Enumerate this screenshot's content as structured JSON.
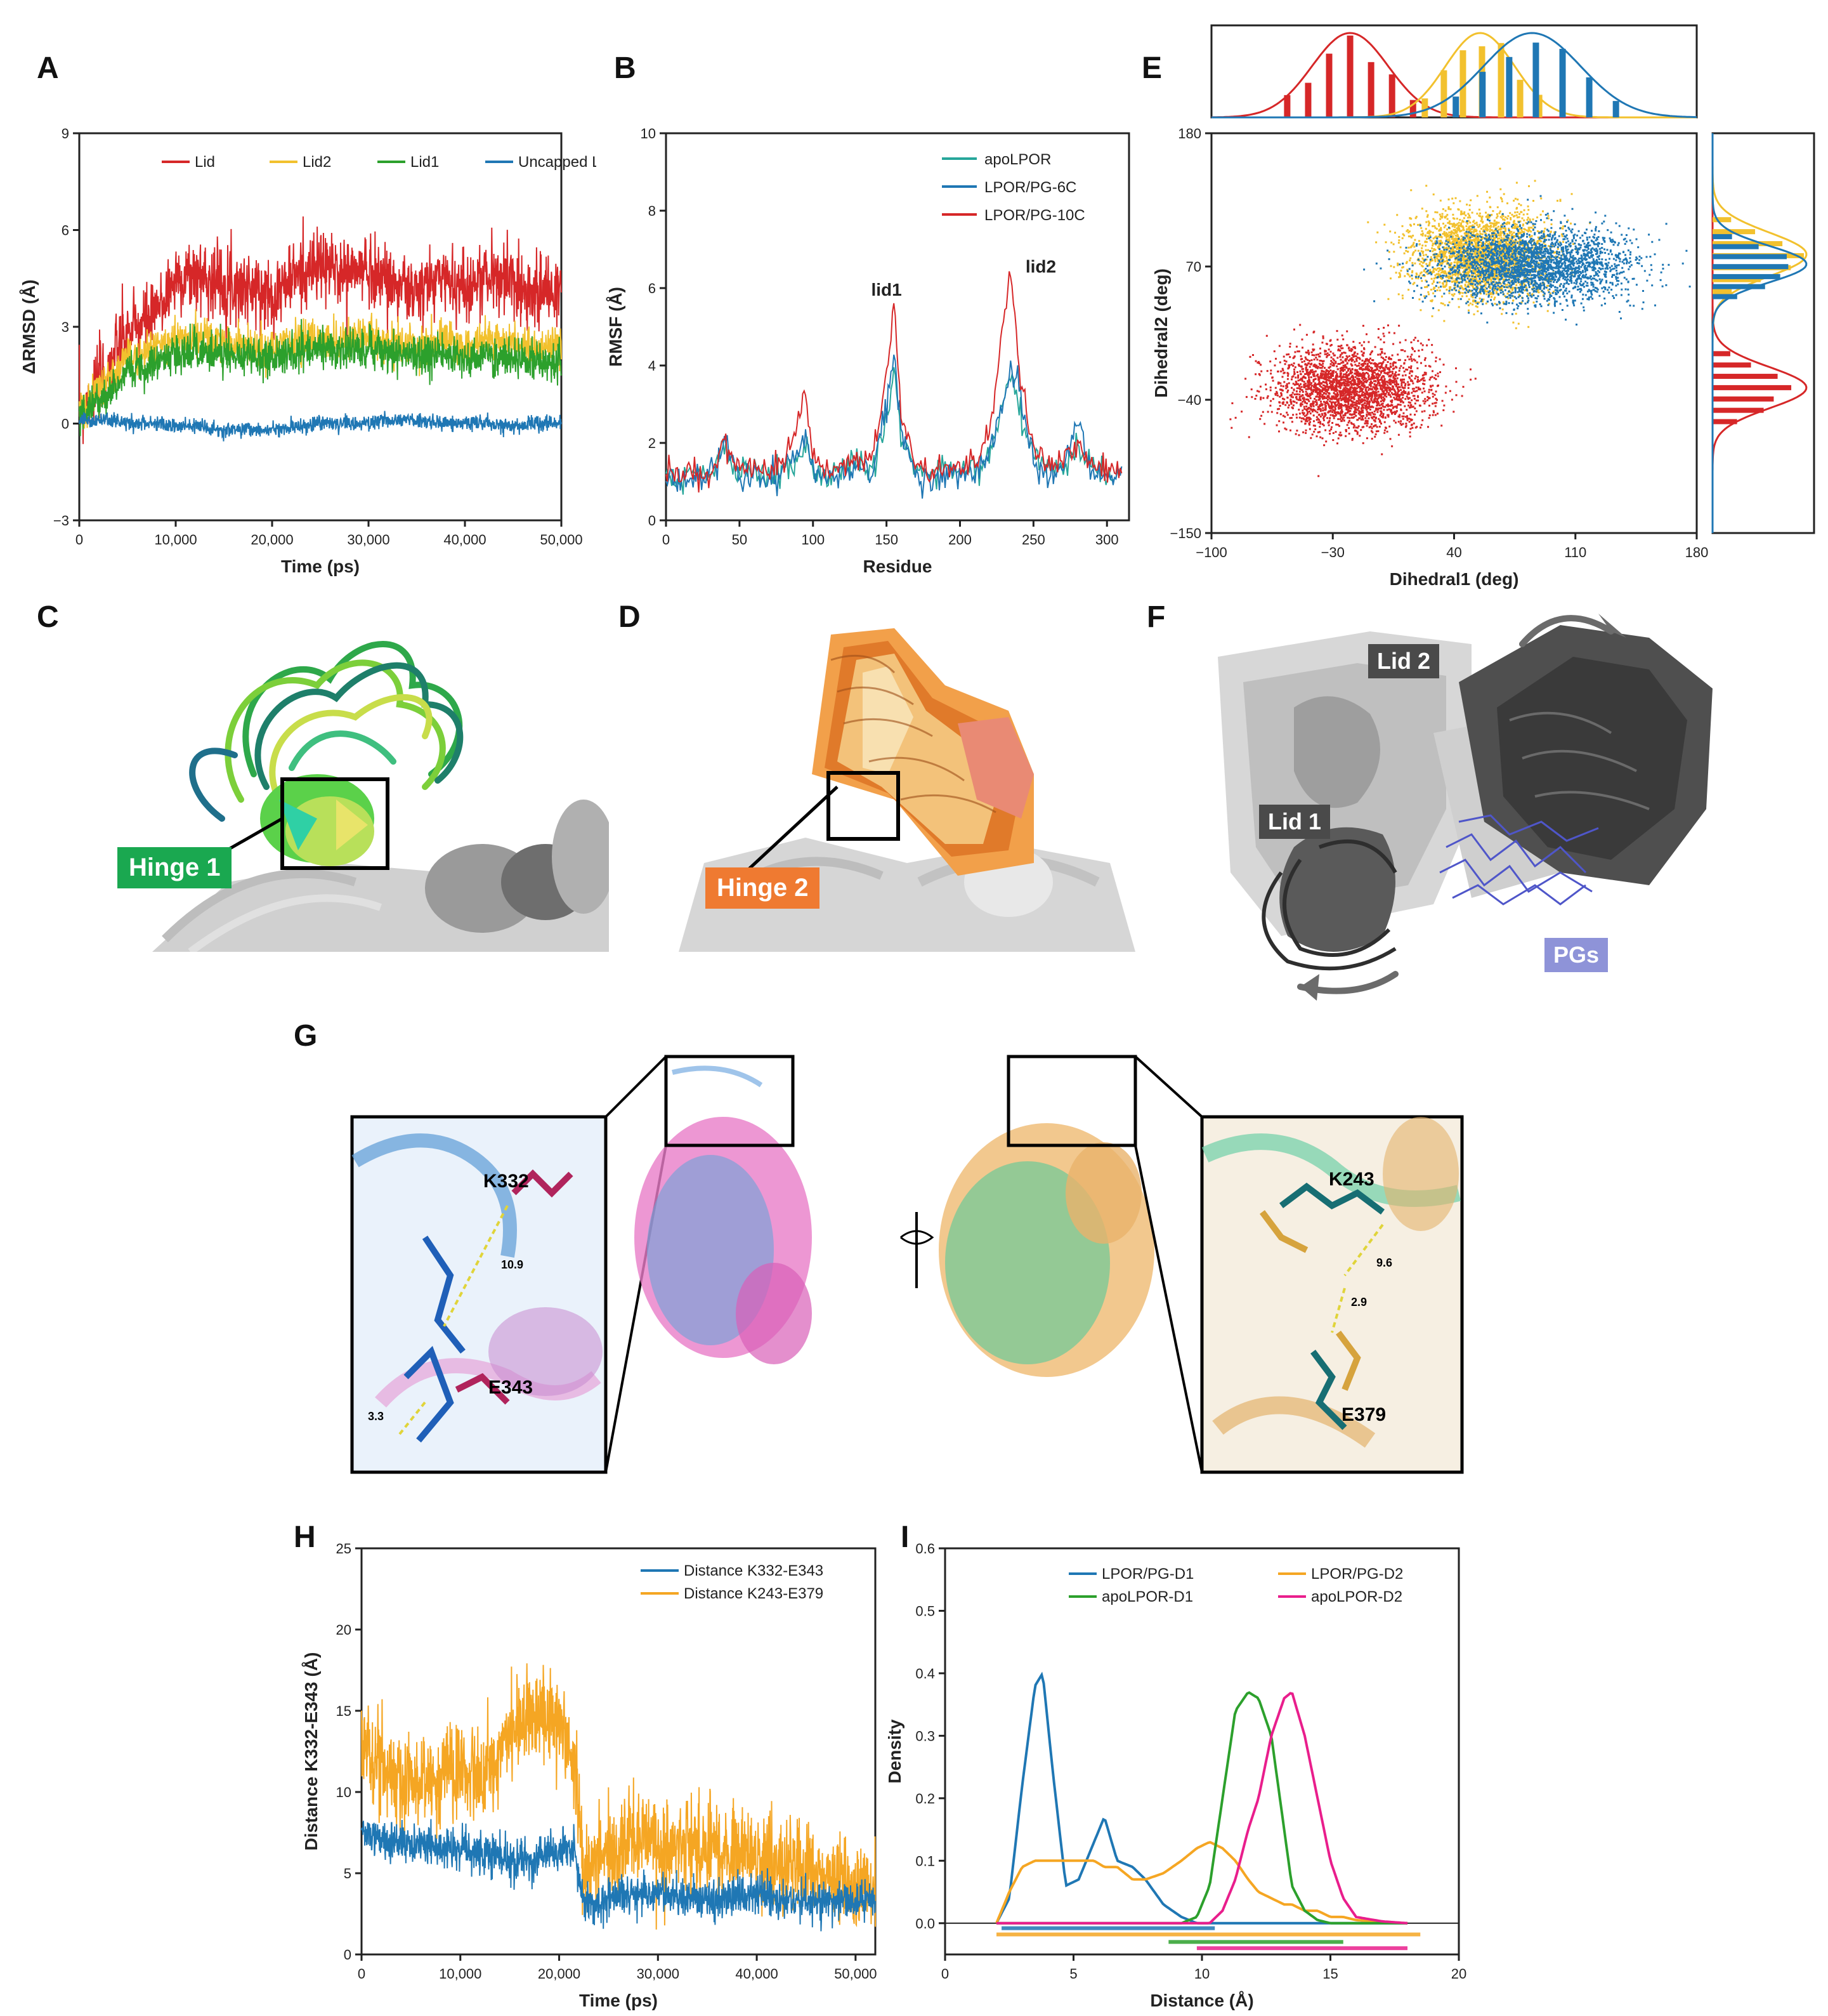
{
  "panels": {
    "A": "A",
    "B": "B",
    "C": "C",
    "D": "D",
    "E": "E",
    "F": "F",
    "G": "G",
    "H": "H",
    "I": "I"
  },
  "chart_data": [
    {
      "id": "A",
      "type": "line",
      "xlabel": "Time (ps)",
      "ylabel": "ΔRMSD (Å)",
      "xlim": [
        0,
        50000
      ],
      "ylim": [
        -3,
        9
      ],
      "xticks": [
        "0",
        "10,000",
        "20,000",
        "30,000",
        "40,000",
        "50,000"
      ],
      "yticks": [
        "−3",
        "0",
        "3",
        "6",
        "9"
      ],
      "legend_position": "top",
      "x": [
        0,
        2500,
        5000,
        7500,
        10000,
        12500,
        15000,
        17500,
        20000,
        22500,
        25000,
        27500,
        30000,
        32500,
        35000,
        37500,
        40000,
        42500,
        45000,
        47500,
        50000
      ],
      "series": [
        {
          "name": "Lid",
          "color": "#d62728",
          "values": [
            0.3,
            1.5,
            2.8,
            3.2,
            4.5,
            4.6,
            4.4,
            4.2,
            4.0,
            4.6,
            4.9,
            4.7,
            4.8,
            4.4,
            4.0,
            4.6,
            4.2,
            4.6,
            4.4,
            4.0,
            4.2
          ]
        },
        {
          "name": "Lid2",
          "color": "#f2c12e",
          "values": [
            0.3,
            1.2,
            2.0,
            2.3,
            2.6,
            2.7,
            2.5,
            2.4,
            2.2,
            2.6,
            2.6,
            2.6,
            2.7,
            2.5,
            2.4,
            2.6,
            2.4,
            2.6,
            2.5,
            2.3,
            2.4
          ]
        },
        {
          "name": "Lid1",
          "color": "#2ca02c",
          "values": [
            0.2,
            0.8,
            1.6,
            1.9,
            2.2,
            2.3,
            2.2,
            2.1,
            2.0,
            2.2,
            2.4,
            2.3,
            2.3,
            2.2,
            2.1,
            2.2,
            2.0,
            2.1,
            2.0,
            1.8,
            2.0
          ]
        },
        {
          "name": "Uncapped LFD",
          "color": "#1f77b4",
          "values": [
            0.1,
            0.1,
            0.0,
            0.0,
            -0.1,
            -0.1,
            -0.2,
            -0.2,
            -0.2,
            -0.1,
            0.0,
            0.0,
            0.0,
            0.1,
            0.1,
            0.0,
            0.0,
            0.0,
            -0.1,
            0.0,
            0.0
          ]
        }
      ]
    },
    {
      "id": "B",
      "type": "line",
      "xlabel": "Residue",
      "ylabel": "RMSF (Å)",
      "xlim": [
        0,
        315
      ],
      "ylim": [
        0,
        10
      ],
      "xticks": [
        "0",
        "50",
        "100",
        "150",
        "200",
        "250",
        "300"
      ],
      "yticks": [
        "0",
        "2",
        "4",
        "6",
        "8",
        "10"
      ],
      "legend_position": "top-right",
      "annotations": [
        "lid1",
        "lid2"
      ],
      "x": [
        0,
        10,
        20,
        30,
        40,
        50,
        60,
        70,
        80,
        90,
        95,
        100,
        110,
        120,
        130,
        140,
        150,
        155,
        160,
        170,
        180,
        190,
        200,
        210,
        220,
        230,
        235,
        240,
        250,
        260,
        270,
        280,
        290,
        300,
        310
      ],
      "series": [
        {
          "name": "apoLPOR",
          "color": "#26a69a",
          "values": [
            1.2,
            1.0,
            1.3,
            1.1,
            1.9,
            1.2,
            1.3,
            1.1,
            1.4,
            1.7,
            2.0,
            1.4,
            1.2,
            1.3,
            1.5,
            1.3,
            2.6,
            3.8,
            2.2,
            1.3,
            1.2,
            1.3,
            1.2,
            1.3,
            1.8,
            3.0,
            3.8,
            2.8,
            1.6,
            1.3,
            1.4,
            2.0,
            1.3,
            1.2,
            1.3
          ]
        },
        {
          "name": "LPOR/PG-6C",
          "color": "#1f77b4",
          "values": [
            1.1,
            1.0,
            1.2,
            1.1,
            2.2,
            1.1,
            1.2,
            1.0,
            1.3,
            1.8,
            2.2,
            1.3,
            1.1,
            1.2,
            1.4,
            1.2,
            2.9,
            4.3,
            2.4,
            1.2,
            1.1,
            1.2,
            1.1,
            1.2,
            1.7,
            3.1,
            4.0,
            3.4,
            1.5,
            1.2,
            1.3,
            2.6,
            1.2,
            1.1,
            1.2
          ]
        },
        {
          "name": "LPOR/PG-10C",
          "color": "#d62728",
          "values": [
            1.3,
            1.1,
            1.4,
            1.2,
            2.0,
            1.3,
            1.4,
            1.2,
            1.6,
            2.4,
            3.4,
            1.6,
            1.3,
            1.4,
            1.6,
            1.6,
            3.6,
            5.6,
            2.8,
            1.4,
            1.3,
            1.4,
            1.3,
            1.5,
            2.3,
            5.2,
            6.6,
            4.0,
            1.8,
            1.4,
            1.5,
            2.0,
            1.4,
            1.3,
            1.4
          ]
        }
      ]
    },
    {
      "id": "E",
      "type": "scatter",
      "xlabel": "Dihedral1 (deg)",
      "ylabel": "Dihedral2 (deg)",
      "xlim": [
        -100,
        180
      ],
      "ylim": [
        -150,
        180
      ],
      "xticks": [
        "−100",
        "−30",
        "40",
        "110",
        "180"
      ],
      "yticks": [
        "−150",
        "−40",
        "70",
        "180"
      ],
      "marginals": "top and right histograms with fitted normal curves",
      "clusters": [
        {
          "color": "#d62728",
          "center_x": -20,
          "center_y": -30,
          "spread_x": 22,
          "spread_y": 17
        },
        {
          "color": "#f2c12e",
          "center_x": 55,
          "center_y": 80,
          "spread_x": 20,
          "spread_y": 18
        },
        {
          "color": "#1f77b4",
          "center_x": 85,
          "center_y": 72,
          "spread_x": 28,
          "spread_y": 15
        }
      ]
    },
    {
      "id": "H",
      "type": "line",
      "xlabel": "Time (ps)",
      "ylabel": "Distance K332-E343 (Å)",
      "xlim": [
        0,
        52000
      ],
      "ylim": [
        0,
        25
      ],
      "xticks": [
        "0",
        "10,000",
        "20,000",
        "30,000",
        "40,000",
        "50,000"
      ],
      "yticks": [
        "0",
        "5",
        "10",
        "15",
        "20",
        "25"
      ],
      "legend_position": "top-right",
      "x": [
        0,
        2500,
        5000,
        7500,
        10000,
        12500,
        15000,
        17500,
        20000,
        21500,
        22500,
        25000,
        27500,
        30000,
        32500,
        35000,
        37500,
        40000,
        42500,
        45000,
        47500,
        50000,
        52000
      ],
      "series": [
        {
          "name": "Distance K332-E343",
          "color": "#1f77b4",
          "values": [
            7.5,
            7.0,
            6.8,
            6.6,
            6.5,
            6.2,
            5.8,
            6.0,
            6.4,
            6.5,
            3.0,
            3.3,
            3.8,
            3.6,
            3.5,
            3.4,
            3.5,
            3.6,
            3.4,
            3.3,
            3.2,
            3.3,
            3.5
          ]
        },
        {
          "name": "Distance K243-E379",
          "color": "#f5a623",
          "values": [
            13.5,
            11.0,
            10.5,
            10.8,
            11.2,
            11.0,
            13.5,
            15.0,
            14.0,
            12.0,
            5.0,
            6.5,
            7.5,
            6.8,
            6.5,
            6.2,
            6.6,
            6.0,
            5.5,
            5.2,
            4.8,
            4.5,
            4.0
          ]
        }
      ]
    },
    {
      "id": "I",
      "type": "line",
      "xlabel": "Distance (Å)",
      "ylabel": "Density",
      "xlim": [
        0,
        20
      ],
      "ylim": [
        -0.05,
        0.6
      ],
      "xticks": [
        "0",
        "5",
        "10",
        "15",
        "20"
      ],
      "yticks": [
        "0.0",
        "0.1",
        "0.2",
        "0.3",
        "0.4",
        "0.5",
        "0.6"
      ],
      "legend_position": "top",
      "x": [
        2,
        2.5,
        3,
        3.5,
        3.8,
        4.2,
        4.7,
        5.2,
        5.8,
        6.2,
        6.7,
        7.3,
        7.8,
        8.5,
        9.2,
        9.8,
        10.3,
        10.8,
        11.3,
        11.8,
        12.2,
        12.7,
        13.2,
        13.5,
        14,
        14.5,
        15,
        15.5,
        16,
        17,
        18
      ],
      "series": [
        {
          "name": "LPOR/PG-D1",
          "color": "#1f77b4",
          "values": [
            0.0,
            0.04,
            0.22,
            0.38,
            0.4,
            0.24,
            0.06,
            0.07,
            0.13,
            0.17,
            0.1,
            0.09,
            0.07,
            0.03,
            0.01,
            0.0,
            0,
            0,
            0,
            0,
            0,
            0,
            0,
            0,
            0,
            0,
            0,
            0,
            0,
            0,
            0
          ]
        },
        {
          "name": "LPOR/PG-D2",
          "color": "#f5a623",
          "values": [
            0.0,
            0.05,
            0.09,
            0.1,
            0.1,
            0.1,
            0.1,
            0.1,
            0.1,
            0.09,
            0.09,
            0.07,
            0.07,
            0.08,
            0.1,
            0.12,
            0.13,
            0.12,
            0.1,
            0.07,
            0.05,
            0.04,
            0.03,
            0.03,
            0.02,
            0.02,
            0.01,
            0.01,
            0.005,
            0.002,
            0
          ]
        },
        {
          "name": "apoLPOR-D1",
          "color": "#2ca02c",
          "values": [
            0,
            0,
            0,
            0,
            0,
            0,
            0,
            0,
            0,
            0,
            0,
            0,
            0,
            0,
            0,
            0.01,
            0.06,
            0.2,
            0.34,
            0.37,
            0.36,
            0.3,
            0.15,
            0.06,
            0.02,
            0.005,
            0,
            0,
            0,
            0,
            0
          ]
        },
        {
          "name": "apoLPOR-D2",
          "color": "#e91e8c",
          "values": [
            0,
            0,
            0,
            0,
            0,
            0,
            0,
            0,
            0,
            0,
            0,
            0,
            0,
            0,
            0,
            0,
            0,
            0.02,
            0.07,
            0.15,
            0.2,
            0.3,
            0.36,
            0.37,
            0.3,
            0.2,
            0.1,
            0.04,
            0.01,
            0.003,
            0
          ]
        }
      ]
    }
  ],
  "structures": {
    "C": {
      "label": "Hinge 1",
      "label_bg": "#1aa850"
    },
    "D": {
      "label": "Hinge 2",
      "label_bg": "#ef7a31"
    },
    "F": {
      "labels": [
        "Lid 2",
        "Lid 1",
        "PGs"
      ]
    },
    "G": {
      "left_residues": [
        "K332",
        "E343"
      ],
      "left_distances": [
        "10.9",
        "3.3"
      ],
      "right_residues": [
        "K243",
        "E379"
      ],
      "right_distances": [
        "9.6",
        "2.9"
      ]
    }
  }
}
